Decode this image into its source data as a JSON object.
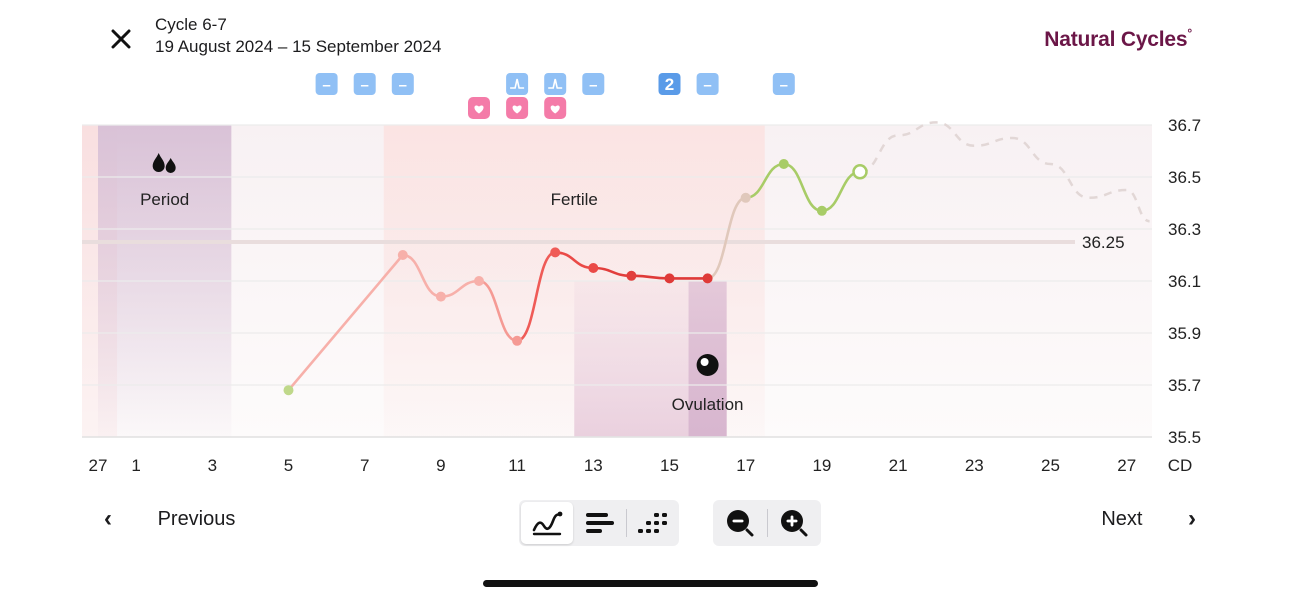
{
  "header": {
    "close_label": "Close",
    "cycle_label": "Cycle 6-7",
    "date_range": "19 August 2024 – 15 September 2024",
    "brand_name": "Natural Cycles",
    "brand_mark": "°",
    "brand_color": "#6b1647"
  },
  "chart_data": {
    "type": "line",
    "x_labels": [
      "27",
      "1",
      "3",
      "5",
      "7",
      "9",
      "11",
      "13",
      "15",
      "17",
      "19",
      "21",
      "23",
      "25",
      "27"
    ],
    "x_unit_label": "CD",
    "y_ticks": [
      "36.7",
      "36.5",
      "36.3",
      "36.1",
      "35.9",
      "35.7",
      "35.5"
    ],
    "ylim": [
      35.5,
      36.7
    ],
    "coverline": {
      "value": 36.25,
      "label": "36.25"
    },
    "zones": [
      {
        "name": "Period",
        "from_day": 0,
        "to_day": 3.5,
        "icon": "drops-icon"
      },
      {
        "name": "Fertile",
        "from_day": 7.5,
        "to_day": 17.5
      },
      {
        "name": "Ovulation",
        "from_day": 12.5,
        "to_day": 16.5,
        "highlight_from_day": 15.5,
        "icon": "egg-icon"
      }
    ],
    "temperatures": [
      {
        "day": 5,
        "temp": 35.68,
        "color": "#bfd88a"
      },
      {
        "day": 8,
        "temp": 36.2,
        "color": "#f7b0aa"
      },
      {
        "day": 9,
        "temp": 36.04,
        "color": "#f7b0aa"
      },
      {
        "day": 10,
        "temp": 36.1,
        "color": "#f7b0aa"
      },
      {
        "day": 11,
        "temp": 35.87,
        "color": "#f59a94"
      },
      {
        "day": 12,
        "temp": 36.21,
        "color": "#ef5b57"
      },
      {
        "day": 13,
        "temp": 36.15,
        "color": "#ea4a47"
      },
      {
        "day": 14,
        "temp": 36.12,
        "color": "#e23e3c"
      },
      {
        "day": 15,
        "temp": 36.11,
        "color": "#df3a38"
      },
      {
        "day": 16,
        "temp": 36.11,
        "color": "#df3a38"
      },
      {
        "day": 17,
        "temp": 36.42,
        "color": "#e0c8bb"
      },
      {
        "day": 18,
        "temp": 36.55,
        "color": "#a8cc67"
      },
      {
        "day": 19,
        "temp": 36.37,
        "color": "#a8cc67"
      },
      {
        "day": 20,
        "temp": 36.52,
        "color": "#a8cc67",
        "hollow": true
      }
    ],
    "prediction": [
      {
        "day": 20,
        "temp": 36.52
      },
      {
        "day": 21,
        "temp": 36.66
      },
      {
        "day": 22,
        "temp": 36.71
      },
      {
        "day": 23,
        "temp": 36.62
      },
      {
        "day": 24,
        "temp": 36.65
      },
      {
        "day": 25,
        "temp": 36.55
      },
      {
        "day": 26,
        "temp": 36.42
      },
      {
        "day": 27,
        "temp": 36.45
      },
      {
        "day": 27.6,
        "temp": 36.33
      }
    ],
    "markers_blue": [
      {
        "day": 6,
        "text": "–",
        "icon": "dash-icon"
      },
      {
        "day": 7,
        "text": "–",
        "icon": "dash-icon"
      },
      {
        "day": 8,
        "text": "–",
        "icon": "dash-icon"
      },
      {
        "day": 11,
        "text": "",
        "icon": "lh-test-icon"
      },
      {
        "day": 12,
        "text": "",
        "icon": "lh-test-icon"
      },
      {
        "day": 13,
        "text": "–",
        "icon": "dash-icon"
      },
      {
        "day": 15,
        "text": "2",
        "icon": "count-badge",
        "dark": true
      },
      {
        "day": 16,
        "text": "–",
        "icon": "dash-icon"
      },
      {
        "day": 18,
        "text": "–",
        "icon": "dash-icon"
      }
    ],
    "markers_pink": [
      {
        "day": 10,
        "icon": "heart-icon"
      },
      {
        "day": 11,
        "icon": "heart-icon"
      },
      {
        "day": 12,
        "icon": "heart-icon"
      }
    ],
    "colors": {
      "blue_marker": "#90c0f5",
      "blue_marker_dark": "#5a9be8",
      "pink_marker": "#f47ba8",
      "grid": "#ececec",
      "coverline": "#e9dddd",
      "period_zone": "#d9c2d7",
      "fertile_zone": "#fbe4e3",
      "ovulation_zone": "#ead0de",
      "ovulation_highlight": "#d8b6cf",
      "prediction": "#e2d7d6"
    }
  },
  "footer": {
    "previous_label": "Previous",
    "next_label": "Next",
    "prev_chevron": "‹",
    "next_chevron": "›"
  }
}
